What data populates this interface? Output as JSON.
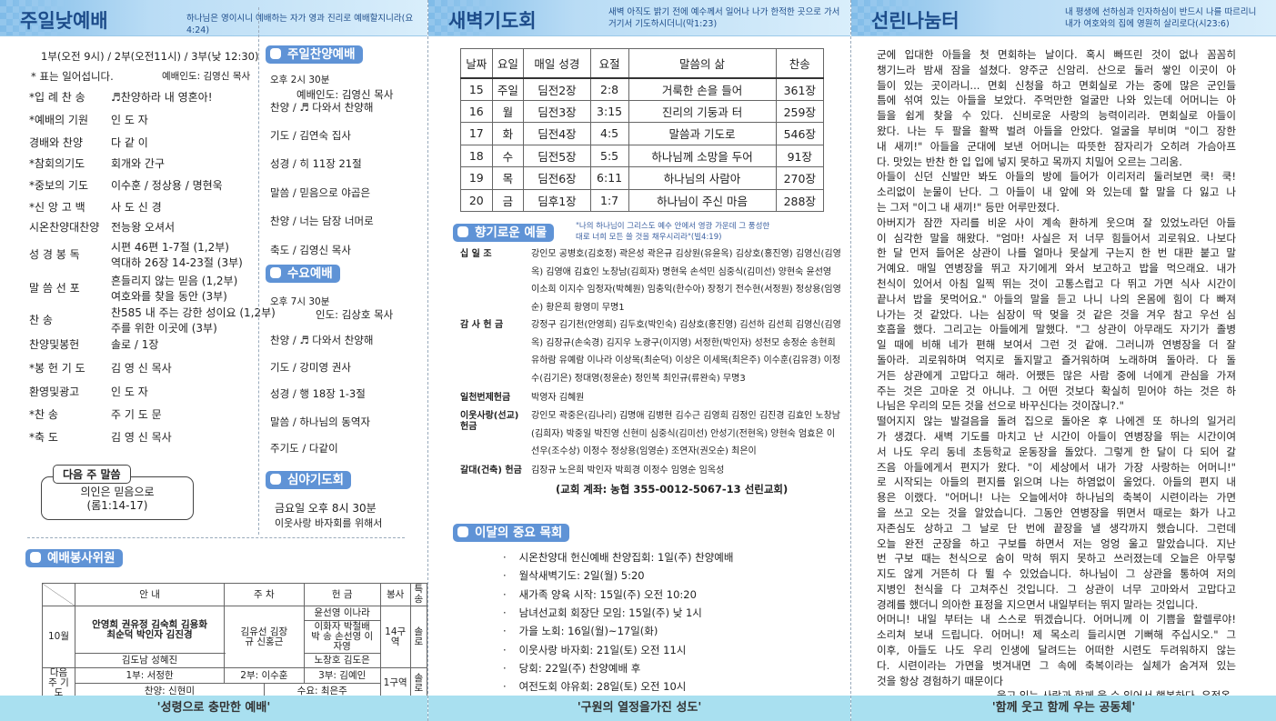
{
  "panel1": {
    "title": "주일낮예배",
    "verse": "하나님은 영이시니 예배하는 자가 영과 진리로 예배할지니라(요4:24)",
    "times": "1부(오전 9시) / 2부(오전11시) / 3부(낮 12:30)",
    "standing_note": "* 표는 일어섭니다.",
    "leader": "예배인도: 김영신 목사",
    "program": [
      {
        "label": "*입 례 찬 송",
        "values": [
          "♬찬양하라 내 영혼아!"
        ]
      },
      {
        "label": "*예배의 기원",
        "values": [
          "인 도 자"
        ]
      },
      {
        "label": " 경배와 찬양",
        "values": [
          "다 같 이"
        ]
      },
      {
        "label": "*참회의기도",
        "values": [
          "회개와 간구"
        ]
      },
      {
        "label": "*중보의 기도",
        "values": [
          "이수훈 / 정상용 / 명현욱"
        ]
      },
      {
        "label": "*신 앙 고 백",
        "values": [
          "사 도 신 경"
        ]
      },
      {
        "label": " 시온찬양대찬양",
        "values": [
          "전능왕 오셔서"
        ]
      },
      {
        "label": " 성 경 봉 독",
        "values": [
          "시편 46편 1-7절 (1,2부)",
          "역대하 26장 14-23절 (3부)"
        ]
      },
      {
        "label": " 말 씀 선 포",
        "values": [
          "흔들리지 않는 믿음 (1,2부)",
          "여호와를 찾을 동안 (3부)"
        ]
      },
      {
        "label": " 찬          송",
        "values": [
          "찬585 내 주는 강한 성이요 (1,2부)",
          "주를 위한 이곳에 (3부)"
        ]
      },
      {
        "label": " 찬양및봉헌",
        "values": [
          "솔로 / 1장"
        ]
      },
      {
        "label": "*봉 헌 기 도",
        "values": [
          "김 영 신 목사"
        ]
      },
      {
        "label": " 환영및광고",
        "values": [
          "인 도 자"
        ]
      },
      {
        "label": "*찬          송",
        "values": [
          "주 기 도 문"
        ]
      },
      {
        "label": "*축          도",
        "values": [
          "김 영 신 목사"
        ]
      }
    ],
    "next_week": {
      "label": "다음 주 말씀",
      "title": "의인은 믿음으로",
      "ref": "(롬1:14-17)"
    },
    "praise_service": {
      "title": "주일찬양예배",
      "time": "오후 2시 30분",
      "leader": "예배인도: 김영신 목사",
      "items": [
        "찬양 / ♬ 다와서 찬양해",
        "기도 / 김연숙 집사",
        "성경 / 히 11장 21절",
        "말씀 / 믿음으로 야곱은",
        "찬양 / 너는 담장 너머로",
        "축도 / 김영신 목사"
      ]
    },
    "wed_service": {
      "title": "수요예배",
      "time": "오후 7시 30분",
      "leader": "인도: 김상호 목사",
      "items": [
        "찬양 / ♬ 다와서 찬양해",
        "기도 / 강미영 권사",
        "성경 / 행 18장 1-3절",
        "말씀 / 하나님의 동역자",
        "주기도 / 다같이"
      ]
    },
    "night_prayer": {
      "title": "심야기도회",
      "time": "금요일 오후 8시 30분",
      "note": "이웃사랑 바자회를 위해서"
    },
    "servers": {
      "title": "예배봉사위원",
      "headers": [
        "안  내",
        "주  차",
        "헌  금",
        "봉사",
        "특송"
      ],
      "month": "10월",
      "guide_main": "안영희 권유정 김숙희 김용화 최순덕 박인자 김진경",
      "guide_sub": "김도남 성혜진",
      "parking": "김유선 김장규 신홍근",
      "offering": [
        "윤선영 이나라",
        "이화자 박철배 박  송 손선영 이자영",
        "노창호 김도은"
      ],
      "service": "14구역",
      "special": "솔로",
      "next_label": "다음주 기 도",
      "prayer": [
        "1부: 서정한",
        "2부: 이수훈",
        "3부: 김예인"
      ],
      "praise": "찬양: 신현미",
      "wed": "수요: 최은주",
      "next_service": "1구역",
      "next_special": "솔로"
    },
    "footer": "'성령으로 충만한 예배'"
  },
  "panel2": {
    "title": "새벽기도회",
    "verse": "새벽 아직도 밝기 전에 예수께서 일어나 나가 한적한 곳으로 가서 거기서 기도하시더니(막1:23)",
    "table": {
      "headers": [
        "날짜",
        "요일",
        "매일 성경",
        "요절",
        "말씀의 삶",
        "찬송"
      ],
      "rows": [
        [
          "15",
          "주일",
          "딤전2장",
          "2:8",
          "거룩한 손을 들어",
          "361장"
        ],
        [
          "16",
          "월",
          "딤전3장",
          "3:15",
          "진리의 기둥과 터",
          "259장"
        ],
        [
          "17",
          "화",
          "딤전4장",
          "4:5",
          "말씀과 기도로",
          "546장"
        ],
        [
          "18",
          "수",
          "딤전5장",
          "5:5",
          "하나님께 소망을 두어",
          "91장"
        ],
        [
          "19",
          "목",
          "딤전6장",
          "6:11",
          "하나님의 사람아",
          "270장"
        ],
        [
          "20",
          "금",
          "딤후1장",
          "1:7",
          "하나님이 주신 마음",
          "288장"
        ]
      ]
    },
    "offering_title": "향기로운 예물",
    "offering_verse": "\"나의 하나님이 그리스도 예수 안에서 영광 가운데 그 풍성한 대로 너희 모든 쓸 것을 채우시리라\"(빌4:19)",
    "offerings": [
      {
        "label": "십   일   조",
        "names": "강인모 공병호(김호정) 곽은성 곽은규 김상원(유윤옥) 김상호(홍진영) 김영신(김영옥) 김영애 김효인 노창남(김희자) 명현욱 손석민 심중식(김미선) 양현숙 윤선영 이소희 이지수 임정자(박혜원) 임충익(한수아) 장정기 전수현(서정원) 정상용(임영순) 황은희 황영미 무명1"
      },
      {
        "label": "감 사 헌 금",
        "names": "강정구 김기천(안영희) 김두호(박인숙) 김상호(홍진영) 김선하 김선희 김영신(김영옥) 김장규(손숙경) 김지우 노광구(이지영) 서정한(박인자) 성천모 송정순 송현희 유하람 유예람 이나라 이상목(최순덕) 이상은 이세목(최은주) 이수훈(김유경) 이정수(김기은) 정대영(정윤순) 정인복 최인규(류완숙) 무명3"
      },
      {
        "label": "일천번제헌금",
        "names": "박영자 김혜원"
      },
      {
        "label": "이웃사랑(선교) 헌금",
        "names": "강인모 곽중은(김나리) 김명애 김병현 김수근 김영희 김정인 김진경 김효인 노창남(김희자) 박중일 박진영 신현미 심중식(김미선) 안성기(전현옥) 양현숙 엄효은 이선우(조수상) 이정수 정상용(임영순) 조연자(권오순) 최은이"
      },
      {
        "label": "갈대(건축) 헌금",
        "names": "김장규 노은희 박인자 박희경 이정수 임영순 임옥성"
      }
    ],
    "account": "(교회 계좌: 농협 355-0012-5067-13 선린교회)",
    "events_title": "이달의 중요 목회",
    "events": [
      "시온찬양대 헌신예배 찬양집회: 1일(주) 찬양예배",
      "월삭새벽기도: 2일(월) 5:20",
      "새가족 양육 시작: 15일(주) 오전 10:20",
      "남녀선교회 회장단 모임: 15일(주) 낮 1시",
      "가을 노회: 16일(월)~17일(화)",
      "이웃사랑 바자회: 21일(토) 오전 11시",
      "당회: 22일(주) 찬양예배 후",
      "여전도회 야유회: 28일(토) 오전 10시"
    ],
    "footer": "'구원의 열정을가진 성도'"
  },
  "panel3": {
    "title": "선린나눔터",
    "verse": "내 평생에 선하심과 인자하심이 반드시 나를 따르리니 내가 여호와의 집에 영원히 살리로다(시23:6)",
    "essay_lines": [
      " 군에 입대한 아들을 첫 면회하는 날이다. 혹시 빠뜨린 것이 없나 꼼꼼히",
      "챙기느라 밤새 잠을 설쳤다. 양주군 신암리. 산으로 둘러 쌓인 이곳이 아",
      "들이 있는 곳이라니... 면회 신청을 하고 면회실로 가는 중에 많은 군인들",
      "틈에 섞여 있는 아들을 보았다. 주먹만한 얼굴만 나와 있는데 어머니는 아",
      "들을 쉽게 찾을 수 있다. 신비로운 사랑의 능력이리라. 면회실로 아들이",
      "왔다. 나는 두 팔을 활짝 벌려 아들을 안았다. 얼굴을 부비며 \"이그 장한",
      "내 새끼!\" 아들을 군대에 보낸 어머니는 따뜻한 잠자리가 오히려 가슴아프",
      "다. 맛있는 반찬 한 입 입에 넣지 못하고 목까지 치밀어 오르는 그리움.",
      "아들이 신던 신발만 봐도 아들의 방에 들어가 이리저리 둘러보면 쿡! 쿡!",
      "소리없이 눈물이 난다. 그 아들이 내 앞에 와 있는데 할 말을 다 잃고 나",
      "는 그저 \"이그 내 새끼!\" 등만 어루만졌다.",
      " 아버지가 잠깐 자리를 비운 사이 계속 환하게 웃으며 잘 있었노라던 아들",
      "이 심각한 말을 해왔다. \"엄마! 사실은 저 너무 힘들어서 괴로워요. 나보다",
      "한 달 먼저 들어온 상관이 나를 얼마나 못살게 구는지 한 번 대판 붙고 말",
      "거예요. 매일 연병장을 뛰고 자기에게 와서 보고하고 밥을 먹으래요. 내가",
      "천식이 있어서 아침 일찍 뛰는 것이 고통스럽고 다 뛰고 가면 식사 시간이",
      "끝나서 밥을 못먹어요.\" 아들의 말을 듣고 나니 나의 온몸에 힘이 다 빠져",
      "나가는 것 같았다. 나는 심장이 딱 멎을 것 같은 것을 겨우 참고 우선 심",
      "호흡을 했다. 그리고는 아들에게 말했다. \"그 상관이 아무래도 자기가 졸병",
      "일 때에 비해 네가 편해 보여서 그런 것 같애. 그러니까 연병장을 더 잘",
      "돌아라. 괴로워하며 억지로 돌지말고 즐거워하며 노래하며 돌아라. 다 돌",
      "거든 상관에게 고맙다고 해라. 어쨌든 많은 사람 중에 너에게 관심을 가져",
      "주는 것은 고마운 것 아니냐. 그 어떤 것보다 확실히 믿어야 하는 것은 하",
      "나님은 우리의 모든 것을 선으로 바꾸신다는 것이잖니?.\"",
      " 떨어지지 않는 발걸음을 돌려 집으로 돌아온 후 나에겐 또 하나의 일거리",
      "가 생겼다. 새벽 기도를 마치고 난 시간이 아들이 연병장을 뛰는 시간이여",
      "서 나도 우리 동네 초등학교 운동장을 돌았다. 그렇게 한 달이 다 되어 갈",
      "즈음 아들에게서 편지가 왔다. \"이 세상에서 내가 가장 사랑하는 어머니!\"",
      "로 시작되는 아들의 편지를 읽으며 나는 하염없이 울었다. 아들의 편지 내",
      "용은 이랬다. \"어머니! 나는 오늘에서야 하나님의 축복이 시련이라는 가면",
      "을 쓰고 오는 것을 알았습니다. 그동안 연병장을 뛰면서 때로는 화가 나고",
      "자존심도 상하고 그 날로 단 번에 끝장을 낼 생각까지 했습니다. 그런데",
      "오늘 완전 군장을 하고 구보를 하면서 저는 엉엉 울고 말았습니다. 지난",
      "번 구보 때는 천식으로 숨이 막혀 뛰지 못하고 쓰러졌는데 오늘은 아무렇",
      "지도 않게 거뜬히 다 뛸 수 있었습니다. 하나님이 그 상관을 통하여 저의",
      "지병인 천식을 다 고쳐주신 것입니다. 그 상관이 너무 고마와서 고맙다고",
      "경례를 했더니 의아한 표정을 지으면서 내일부터는 뛰지 말라는 것입니다.",
      "어머니! 내일 부터는 내 스스로 뛰겠습니다. 어머니께 이 기쁨을 할렐루야!",
      "소리쳐 보내 드립니다. 어머니! 제 목소리 들리시면 기뻐해 주십시오.\" 그",
      "이후, 아들도 나도 우리 인생에 달려드는 어떠한 시련도 두려워하지 않는",
      "다. 시련이라는 가면을 벗겨내면 그 속에 축복이라는 실체가 숨겨져 있는",
      "것을 항상 경험하기 때문이다"
    ],
    "essay_source": "-울고 있는 사람과 함께 울 수 있어서 행복하다, 유정옥",
    "footer": "'함께 웃고 함께 우는 공동체'"
  },
  "colors": {
    "header_title": "#1d4c8a",
    "pill": "#5f93d6",
    "footer": "#a9e0f0"
  }
}
